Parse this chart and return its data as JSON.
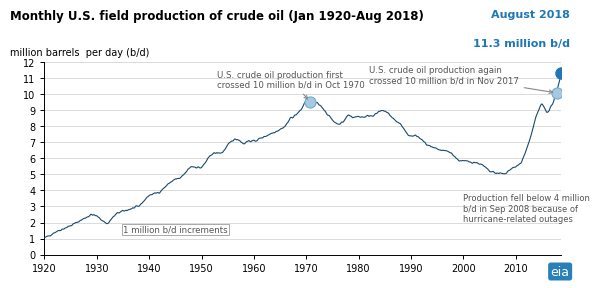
{
  "title": "Monthly U.S. field production of crude oil (Jan 1920-Aug 2018)",
  "ylabel": "million barrels  per day (b/d)",
  "title_color": "#000000",
  "annotation_color": "#1F77B4",
  "line_color": "#003f5c",
  "highlight_color": "#1F77B4",
  "august2018_label": "August 2018",
  "august2018_value": "11.3 million b/d",
  "xlim": [
    1920,
    2018.67
  ],
  "ylim": [
    0,
    12
  ],
  "yticks": [
    0,
    1,
    2,
    3,
    4,
    5,
    6,
    7,
    8,
    9,
    10,
    11,
    12
  ],
  "xticks": [
    1920,
    1930,
    1940,
    1950,
    1960,
    1970,
    1980,
    1990,
    2000,
    2010
  ],
  "annotation1": "U.S. crude oil production first\ncrossed 10 million b/d in Oct 1970",
  "annotation2": "U.S. crude oil production again\ncrossed 10 million b/d in Nov 2017",
  "annotation3": "1 million b/d increments",
  "annotation4": "Production fell below 4 million\nb/d in Sep 2008 because of\nhurricane-related outages",
  "eia_logo": true,
  "background_color": "#ffffff",
  "grid_color": "#cccccc"
}
